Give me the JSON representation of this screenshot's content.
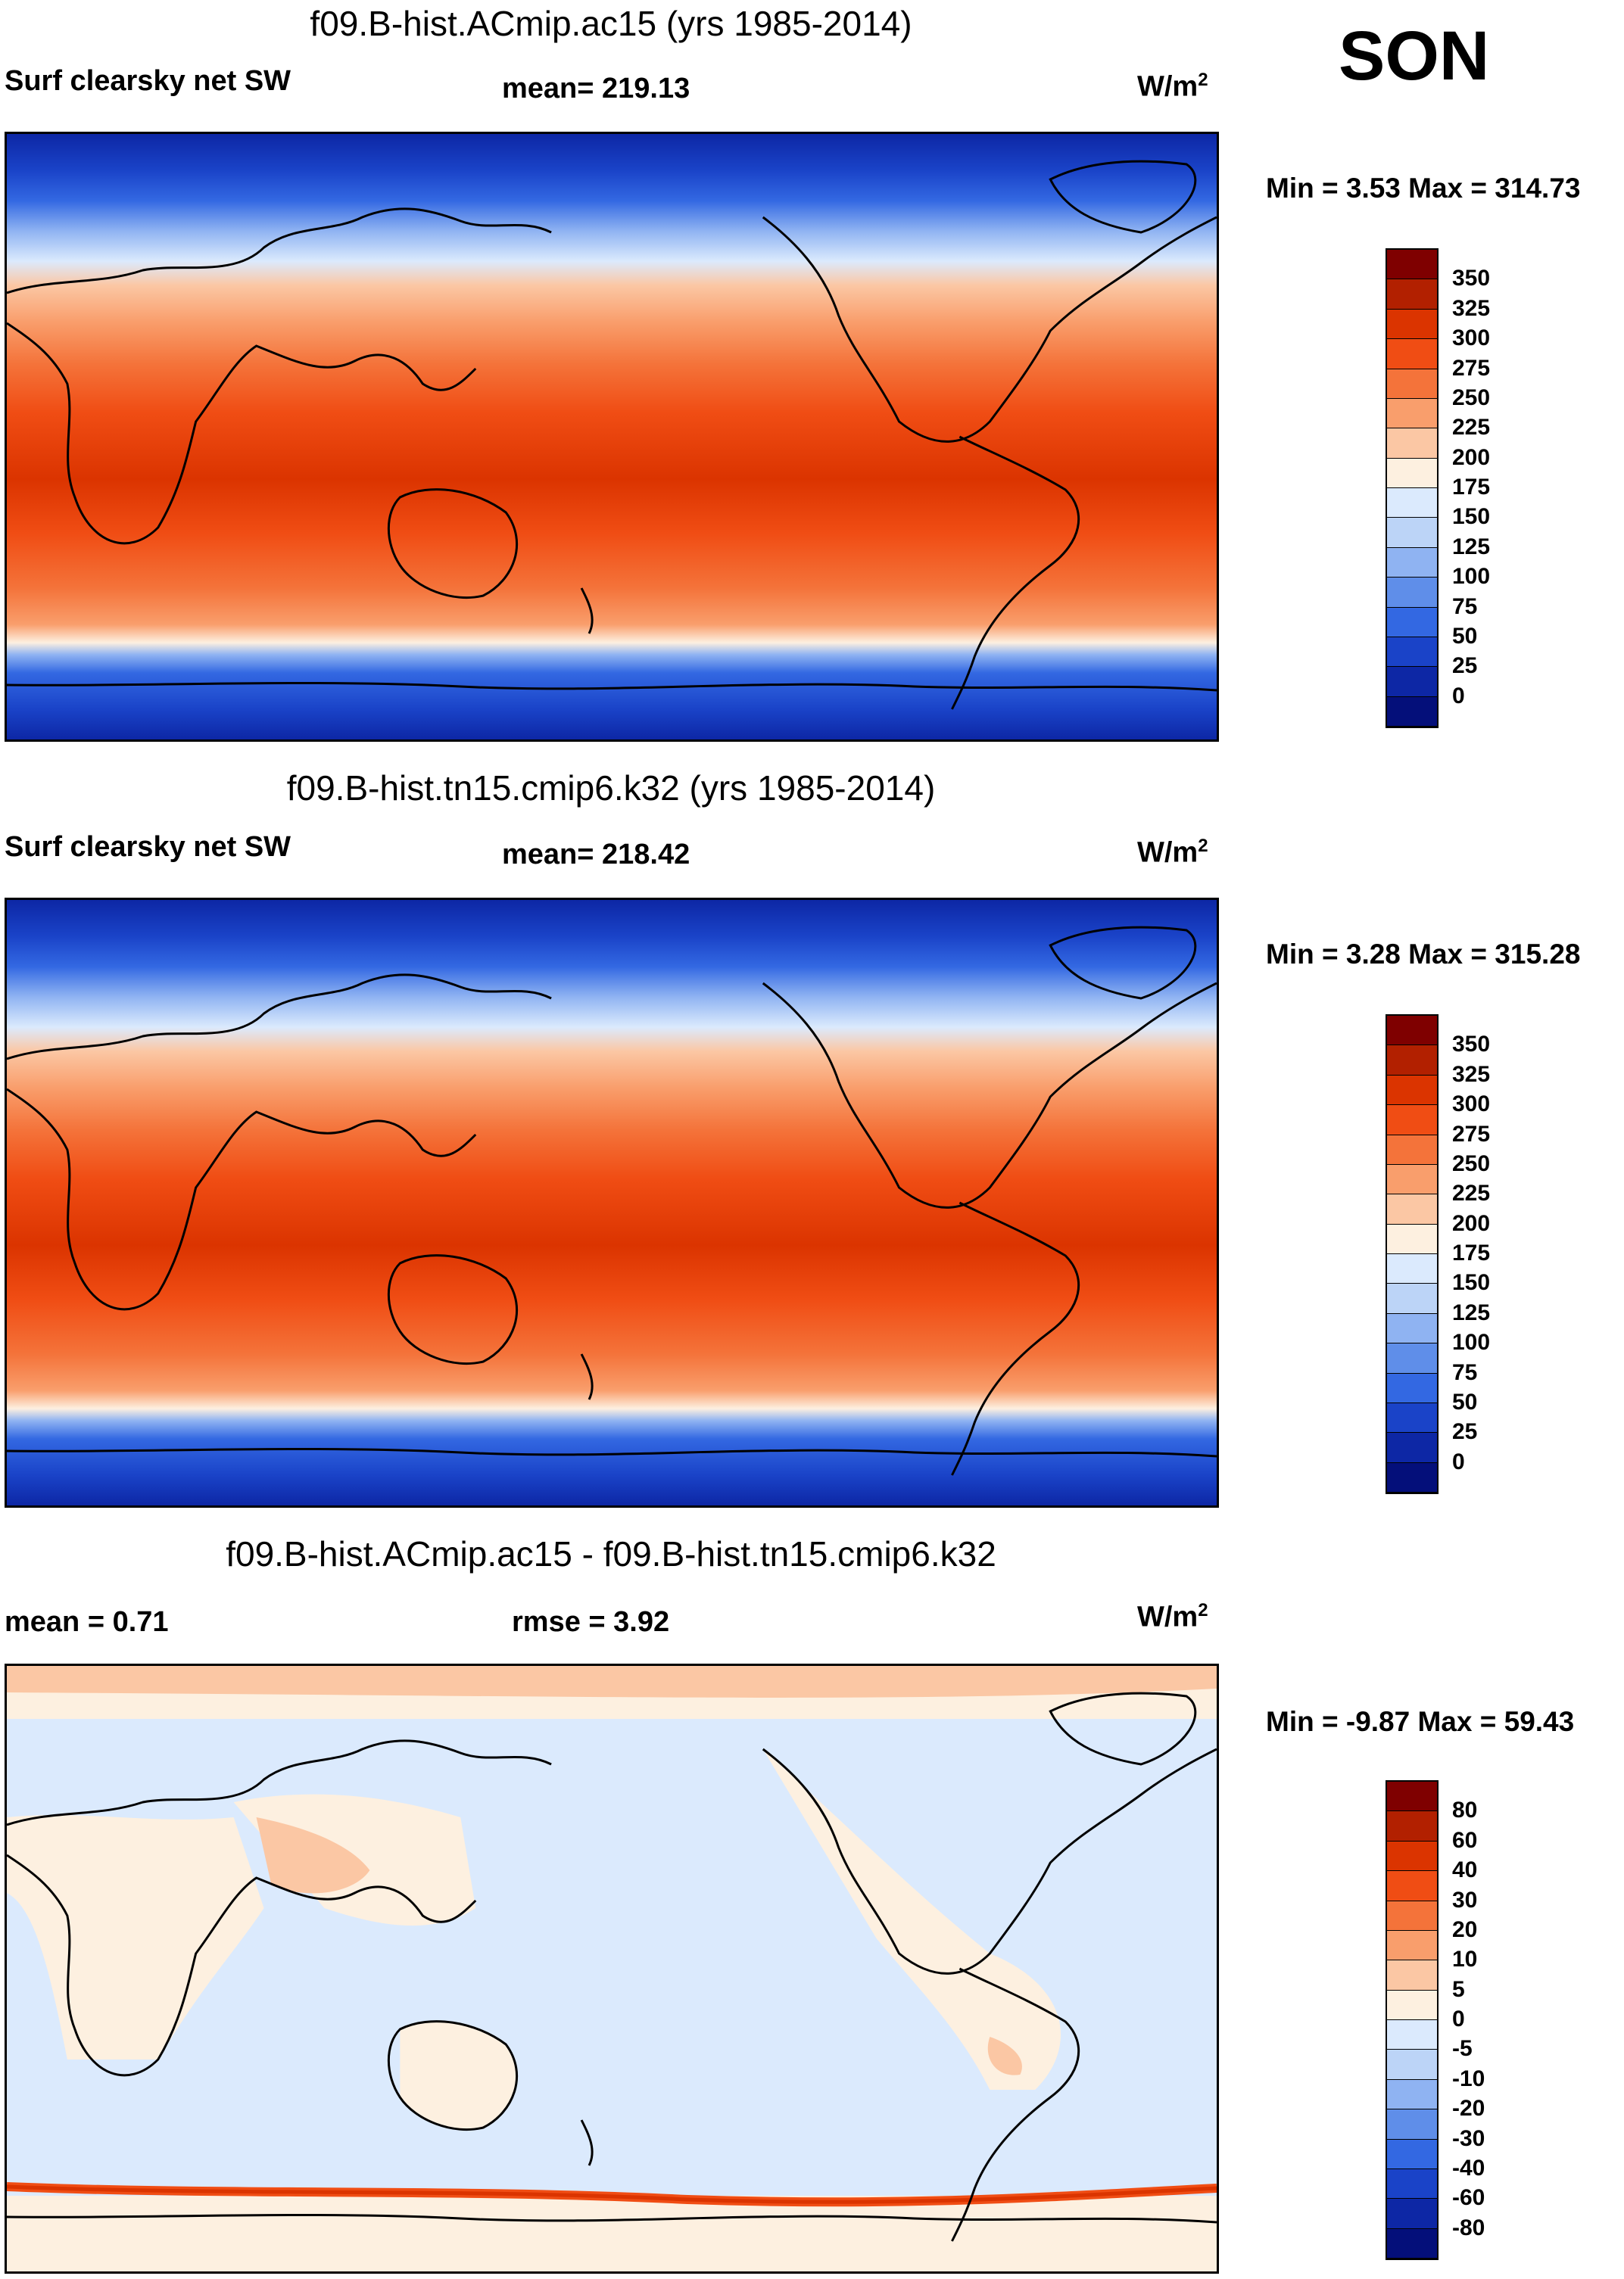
{
  "season": "SON",
  "panels": [
    {
      "title": "f09.B-hist.ACmip.ac15 (yrs 1985-2014)",
      "left_label": "Surf clearsky net SW",
      "center_label": "mean= 219.13",
      "units": "W/m",
      "units_sup": "2",
      "minmax": "Min =   3.53 Max = 314.73",
      "colorbar": {
        "ticks": [
          "350",
          "325",
          "300",
          "275",
          "250",
          "225",
          "200",
          "175",
          "150",
          "125",
          "100",
          "75",
          "50",
          "25",
          "0"
        ],
        "colors": [
          "#7f0000",
          "#b22000",
          "#db3400",
          "#f04d14",
          "#f4733a",
          "#f99e6c",
          "#fbc7a4",
          "#fdf0e0",
          "#dbeafd",
          "#bcd4f7",
          "#8fb3f2",
          "#5f8ee9",
          "#3368e2",
          "#1a43c8",
          "#0d27a5",
          "#040f7a"
        ]
      }
    },
    {
      "title": "f09.B-hist.tn15.cmip6.k32 (yrs 1985-2014)",
      "left_label": "Surf clearsky net SW",
      "center_label": "mean= 218.42",
      "units": "W/m",
      "units_sup": "2",
      "minmax": "Min =   3.28 Max = 315.28",
      "colorbar": {
        "ticks": [
          "350",
          "325",
          "300",
          "275",
          "250",
          "225",
          "200",
          "175",
          "150",
          "125",
          "100",
          "75",
          "50",
          "25",
          "0"
        ],
        "colors": [
          "#7f0000",
          "#b22000",
          "#db3400",
          "#f04d14",
          "#f4733a",
          "#f99e6c",
          "#fbc7a4",
          "#fdf0e0",
          "#dbeafd",
          "#bcd4f7",
          "#8fb3f2",
          "#5f8ee9",
          "#3368e2",
          "#1a43c8",
          "#0d27a5",
          "#040f7a"
        ]
      }
    },
    {
      "title": "f09.B-hist.ACmip.ac15 - f09.B-hist.tn15.cmip6.k32",
      "left_label": "mean =   0.71",
      "center_label": "rmse =   3.92",
      "units": "W/m",
      "units_sup": "2",
      "minmax": "Min =  -9.87 Max =  59.43",
      "colorbar": {
        "ticks": [
          "80",
          "60",
          "40",
          "30",
          "20",
          "10",
          "5",
          "0",
          "-5",
          "-10",
          "-20",
          "-30",
          "-40",
          "-60",
          "-80"
        ],
        "colors": [
          "#7f0000",
          "#b22000",
          "#db3400",
          "#f04d14",
          "#f4733a",
          "#f99e6c",
          "#fbc7a4",
          "#fdf0e0",
          "#dbeafd",
          "#bcd4f7",
          "#8fb3f2",
          "#5f8ee9",
          "#3368e2",
          "#1a43c8",
          "#0d27a5",
          "#040f7a"
        ]
      }
    }
  ]
}
